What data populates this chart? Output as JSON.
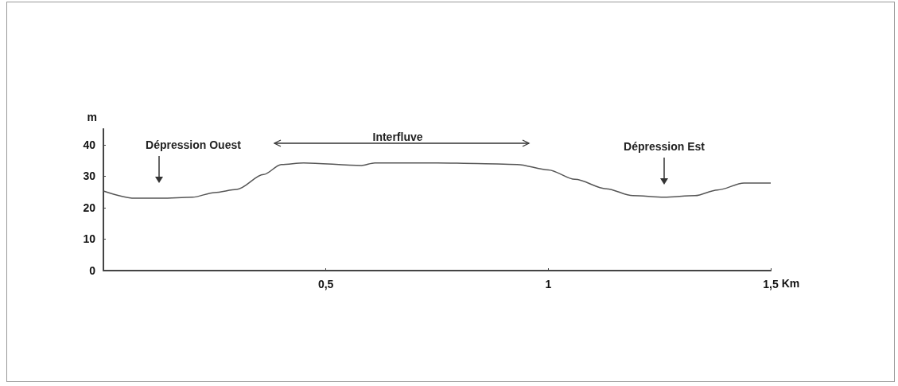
{
  "chart_data": {
    "type": "line",
    "xlabel": "Km",
    "ylabel": "m",
    "x": [
      0,
      0.07,
      0.13,
      0.2,
      0.25,
      0.3,
      0.36,
      0.4,
      0.45,
      0.58,
      0.61,
      0.75,
      0.84,
      0.93,
      1,
      1.06,
      1.13,
      1.19,
      1.26,
      1.33,
      1.38,
      1.44,
      1.5
    ],
    "series": [
      {
        "color": "#555555",
        "values": [
          25.3,
          23,
          23,
          23.3,
          24.8,
          25.8,
          30.5,
          33.7,
          34.2,
          33.4,
          34.2,
          34.2,
          34,
          33.7,
          32,
          29,
          26,
          23.8,
          23.3,
          23.8,
          25.6,
          27.8,
          27.8
        ]
      }
    ],
    "xlim": [
      0,
      1.5
    ],
    "xticks": [
      {
        "value": 0,
        "label": null
      },
      {
        "value": 0.5,
        "label": "0,5"
      },
      1,
      {
        "value": 1.5,
        "label": "1,5"
      }
    ],
    "ylim": [
      0,
      45
    ],
    "yticks": [
      0,
      10,
      20,
      30,
      40
    ],
    "grid": false,
    "marker": "none",
    "line_style": "solid",
    "annotations": [
      "Dépression Ouest",
      "Interfluve",
      "Dépression Est"
    ]
  }
}
